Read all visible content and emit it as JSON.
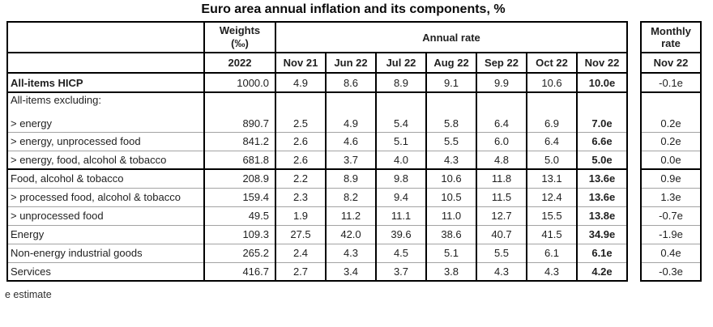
{
  "title": "Euro area annual inflation and its components, %",
  "footnote": "e estimate",
  "table": {
    "weights_header": "Weights",
    "weights_unit": "(‰)",
    "weights_year": "2022",
    "annual_rate_header": "Annual rate",
    "monthly_rate_header": "Monthly rate",
    "annual_months": [
      "Nov 21",
      "Jun 22",
      "Jul 22",
      "Aug 22",
      "Sep 22",
      "Oct 22",
      "Nov 22"
    ],
    "monthly_month": "Nov 22",
    "rows": [
      {
        "label": "All-items HICP",
        "bold": true,
        "weight": "1000.0",
        "annual": [
          "4.9",
          "8.6",
          "8.9",
          "9.1",
          "9.9",
          "10.6",
          "10.0e"
        ],
        "monthly": "-0.1e",
        "thick_below": true
      },
      {
        "label": "All-items excluding:",
        "label2": "> energy",
        "tall": true,
        "weight": "890.7",
        "annual": [
          "2.5",
          "4.9",
          "5.4",
          "5.8",
          "6.4",
          "6.9",
          "7.0e"
        ],
        "monthly": "0.2e"
      },
      {
        "label": "> energy, unprocessed food",
        "weight": "841.2",
        "annual": [
          "2.6",
          "4.6",
          "5.1",
          "5.5",
          "6.0",
          "6.4",
          "6.6e"
        ],
        "monthly": "0.2e"
      },
      {
        "label": "> energy, food, alcohol & tobacco",
        "weight": "681.8",
        "annual": [
          "2.6",
          "3.7",
          "4.0",
          "4.3",
          "4.8",
          "5.0",
          "5.0e"
        ],
        "monthly": "0.0e",
        "thick_below": true
      },
      {
        "label": "Food, alcohol & tobacco",
        "weight": "208.9",
        "annual": [
          "2.2",
          "8.9",
          "9.8",
          "10.6",
          "11.8",
          "13.1",
          "13.6e"
        ],
        "monthly": "0.9e"
      },
      {
        "label": "> processed food, alcohol & tobacco",
        "weight": "159.4",
        "annual": [
          "2.3",
          "8.2",
          "9.4",
          "10.5",
          "11.5",
          "12.4",
          "13.6e"
        ],
        "monthly": "1.3e"
      },
      {
        "label": "> unprocessed food",
        "weight": "49.5",
        "annual": [
          "1.9",
          "11.2",
          "11.1",
          "11.0",
          "12.7",
          "15.5",
          "13.8e"
        ],
        "monthly": "-0.7e"
      },
      {
        "label": "Energy",
        "weight": "109.3",
        "annual": [
          "27.5",
          "42.0",
          "39.6",
          "38.6",
          "40.7",
          "41.5",
          "34.9e"
        ],
        "monthly": "-1.9e"
      },
      {
        "label": "Non-energy industrial goods",
        "weight": "265.2",
        "annual": [
          "2.4",
          "4.3",
          "4.5",
          "5.1",
          "5.5",
          "6.1",
          "6.1e"
        ],
        "monthly": "0.4e"
      },
      {
        "label": "Services",
        "weight": "416.7",
        "annual": [
          "2.7",
          "3.4",
          "3.7",
          "3.8",
          "4.3",
          "4.3",
          "4.2e"
        ],
        "monthly": "-0.3e"
      }
    ]
  },
  "chart_data": {
    "type": "table",
    "title": "Euro area annual inflation and its components, %",
    "columns": [
      "Component",
      "Weights (‰) 2022",
      "Annual rate Nov 21",
      "Annual rate Jun 22",
      "Annual rate Jul 22",
      "Annual rate Aug 22",
      "Annual rate Sep 22",
      "Annual rate Oct 22",
      "Annual rate Nov 22",
      "Monthly rate Nov 22"
    ],
    "rows": [
      [
        "All-items HICP",
        1000.0,
        4.9,
        8.6,
        8.9,
        9.1,
        9.9,
        10.6,
        "10.0e",
        "-0.1e"
      ],
      [
        "All-items excluding: > energy",
        890.7,
        2.5,
        4.9,
        5.4,
        5.8,
        6.4,
        6.9,
        "7.0e",
        "0.2e"
      ],
      [
        "All-items excluding: > energy, unprocessed food",
        841.2,
        2.6,
        4.6,
        5.1,
        5.5,
        6.0,
        6.4,
        "6.6e",
        "0.2e"
      ],
      [
        "All-items excluding: > energy, food, alcohol & tobacco",
        681.8,
        2.6,
        3.7,
        4.0,
        4.3,
        4.8,
        5.0,
        "5.0e",
        "0.0e"
      ],
      [
        "Food, alcohol & tobacco",
        208.9,
        2.2,
        8.9,
        9.8,
        10.6,
        11.8,
        13.1,
        "13.6e",
        "0.9e"
      ],
      [
        "> processed food, alcohol & tobacco",
        159.4,
        2.3,
        8.2,
        9.4,
        10.5,
        11.5,
        12.4,
        "13.6e",
        "1.3e"
      ],
      [
        "> unprocessed food",
        49.5,
        1.9,
        11.2,
        11.1,
        11.0,
        12.7,
        15.5,
        "13.8e",
        "-0.7e"
      ],
      [
        "Energy",
        109.3,
        27.5,
        42.0,
        39.6,
        38.6,
        40.7,
        41.5,
        "34.9e",
        "-1.9e"
      ],
      [
        "Non-energy industrial goods",
        265.2,
        2.4,
        4.3,
        4.5,
        5.1,
        5.5,
        6.1,
        "6.1e",
        "0.4e"
      ],
      [
        "Services",
        416.7,
        2.7,
        3.4,
        3.7,
        3.8,
        4.3,
        4.3,
        "4.2e",
        "-0.3e"
      ]
    ],
    "footnote": "e estimate (values suffixed with e are estimates)"
  }
}
